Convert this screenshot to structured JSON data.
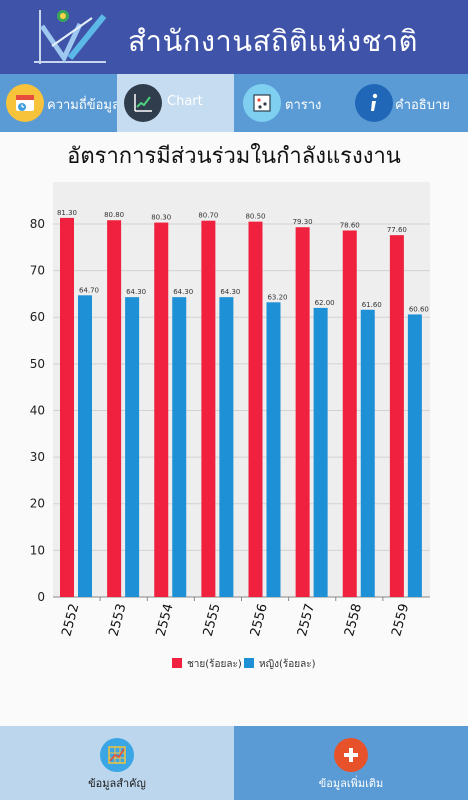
{
  "header": {
    "title": "สำนักงานสถิติแห่งชาติ",
    "logo_icon": "nso-logo-icon"
  },
  "tabs": [
    {
      "label": "ความถี่ข้อมูล",
      "icon": "calendar-clock-icon",
      "active": false
    },
    {
      "label": "Chart",
      "icon": "line-chart-icon",
      "active": true
    },
    {
      "label": "ตาราง",
      "icon": "table-grid-icon",
      "active": false
    },
    {
      "label": "คำอธิบาย",
      "icon": "info-icon",
      "active": false
    }
  ],
  "bottom_nav": {
    "left_label": "ข้อมูลสำคัญ",
    "left_icon": "key-data-grid-icon",
    "right_label": "ข้อมูลเพิ่มเติม",
    "right_icon": "plus-circle-icon"
  },
  "colors": {
    "header_bg": "#3f54a8",
    "tab_bg": "#5b9bd5",
    "tab_active_bg": "#c5dcf1",
    "male_series": "#f0213e",
    "female_series": "#1d90d6",
    "plot_bg": "#eeeeee"
  },
  "chart_data": {
    "type": "bar",
    "title": "อัตราการมีส่วนร่วมในกำลังแรงงาน",
    "categories": [
      "2552",
      "2553",
      "2554",
      "2555",
      "2556",
      "2557",
      "2558",
      "2559"
    ],
    "series": [
      {
        "name": "ชาย(ร้อยละ)",
        "color": "#f0213e",
        "values": [
          81.3,
          80.8,
          80.3,
          80.7,
          80.5,
          79.3,
          78.6,
          77.6
        ],
        "labels": [
          "81.30",
          "80.80",
          "80.30",
          "80.70",
          "80.50",
          "79.30",
          "78.60",
          "77.60"
        ]
      },
      {
        "name": "หญิง(ร้อยละ)",
        "color": "#1d90d6",
        "values": [
          64.7,
          64.3,
          64.3,
          64.3,
          63.2,
          62.0,
          61.6,
          60.6
        ],
        "labels": [
          "64.70",
          "64.30",
          "64.30",
          "64.30",
          "63.20",
          "62.00",
          "61.60",
          "60.60"
        ]
      }
    ],
    "ylim": [
      0,
      89
    ],
    "yticks": [
      0,
      10,
      20,
      30,
      40,
      50,
      60,
      70,
      80
    ],
    "ytick_labels": [
      "0",
      "10",
      "20",
      "30",
      "40",
      "50",
      "60",
      "70",
      "80"
    ],
    "grid": true,
    "legend_position": "bottom"
  }
}
